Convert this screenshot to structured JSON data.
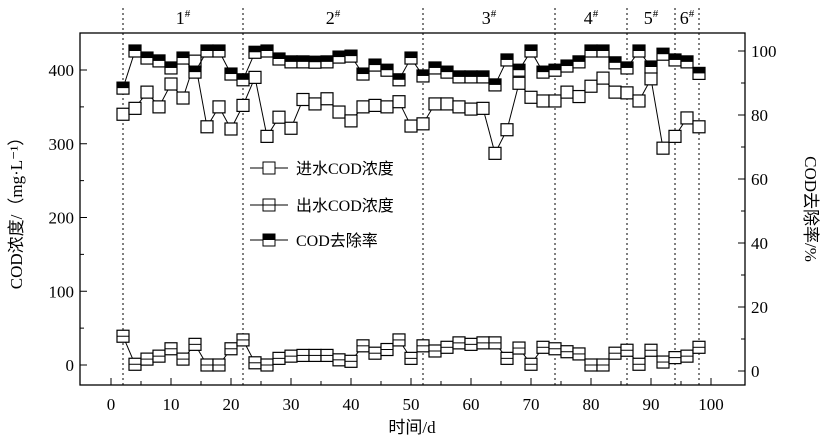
{
  "chart_data": {
    "type": "line",
    "xlabel": "时间/d",
    "ylabel_left": "COD浓度/（mg·L⁻¹）",
    "ylabel_right": "COD去除率/%",
    "xlim": [
      -5,
      105
    ],
    "ylim_left": [
      -30,
      450
    ],
    "ylim_right": [
      -5,
      112
    ],
    "x_ticks": [
      0,
      10,
      20,
      30,
      40,
      50,
      60,
      70,
      80,
      90,
      100
    ],
    "y_left_ticks": [
      0,
      100,
      200,
      300,
      400
    ],
    "y_right_ticks": [
      0,
      20,
      40,
      60,
      80,
      100
    ],
    "stage_dividers": [
      2,
      22,
      52,
      74,
      86,
      94,
      98
    ],
    "stages": [
      {
        "label": "1",
        "sup": "#",
        "center": 12
      },
      {
        "label": "2",
        "sup": "#",
        "center": 37
      },
      {
        "label": "3",
        "sup": "#",
        "center": 63
      },
      {
        "label": "4",
        "sup": "#",
        "center": 80
      },
      {
        "label": "5",
        "sup": "#",
        "center": 90
      },
      {
        "label": "6",
        "sup": "#",
        "center": 96
      }
    ],
    "x": [
      2,
      4,
      6,
      8,
      10,
      12,
      14,
      16,
      18,
      20,
      22,
      24,
      26,
      28,
      30,
      32,
      34,
      36,
      38,
      40,
      42,
      44,
      46,
      48,
      50,
      52,
      54,
      56,
      58,
      60,
      62,
      64,
      66,
      68,
      70,
      72,
      74,
      76,
      78,
      80,
      82,
      84,
      86,
      88,
      90,
      92,
      94,
      96,
      98
    ],
    "series": [
      {
        "name": "进水COD浓度",
        "axis": "left",
        "marker": "open-square",
        "values": [
          340,
          348,
          370,
          350,
          381,
          362,
          412,
          323,
          350,
          320,
          352,
          390,
          310,
          336,
          321,
          360,
          354,
          361,
          343,
          331,
          350,
          352,
          350,
          357,
          324,
          327,
          354,
          354,
          350,
          347,
          348,
          287,
          319,
          382,
          363,
          358,
          358,
          370,
          364,
          378,
          389,
          370,
          369,
          358,
          388,
          294,
          310,
          335,
          323
        ]
      },
      {
        "name": "出水COD浓度",
        "axis": "left",
        "marker": "crossed-square",
        "values": [
          39,
          1,
          8,
          12,
          22,
          8,
          28,
          0,
          0,
          22,
          34,
          3,
          0,
          9,
          12,
          13,
          13,
          13,
          7,
          5,
          26,
          16,
          21,
          34,
          9,
          26,
          19,
          24,
          30,
          28,
          30,
          30,
          9,
          23,
          1,
          24,
          22,
          18,
          15,
          0,
          0,
          16,
          20,
          1,
          20,
          4,
          10,
          12,
          24
        ]
      },
      {
        "name": "COD去除率",
        "axis": "right",
        "marker": "half-filled-square",
        "values": [
          88.4,
          100,
          97.8,
          96.9,
          94.7,
          97.8,
          93.4,
          100,
          100,
          92.8,
          91,
          99.6,
          100,
          97.5,
          96.6,
          96.6,
          96.5,
          96.6,
          98.1,
          98.4,
          92.8,
          95.6,
          94,
          91,
          97.8,
          92.2,
          94.7,
          93.4,
          91.9,
          91.9,
          91.9,
          89.4,
          97.2,
          94,
          100,
          93.4,
          94,
          95.3,
          96.6,
          100,
          100,
          96.3,
          94.7,
          100,
          95,
          99,
          97.2,
          96.6,
          93
        ]
      }
    ],
    "legend_placement": "center-left"
  }
}
